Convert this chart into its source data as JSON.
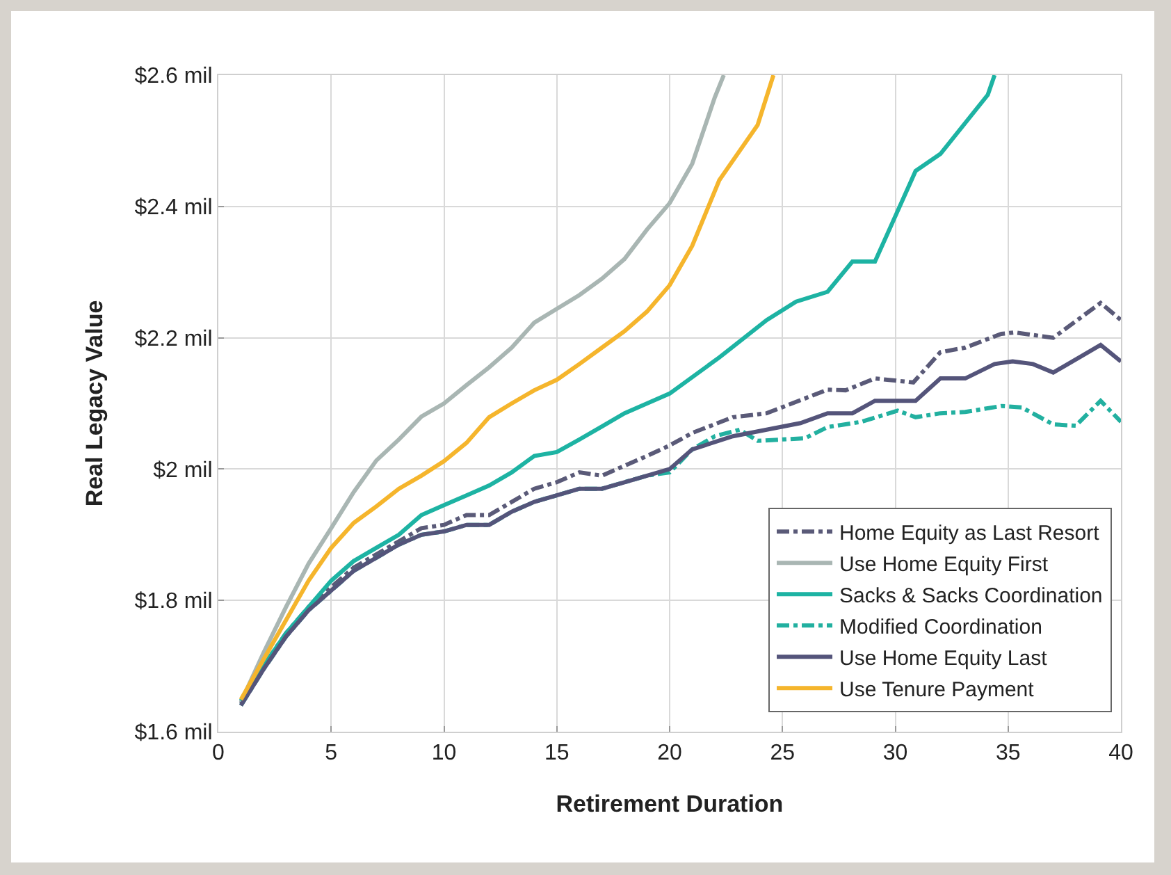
{
  "chart_data": {
    "type": "line",
    "xlabel": "Retirement Duration",
    "ylabel": "Real Legacy Value",
    "xlim": [
      0,
      40
    ],
    "xticks": [
      0,
      5,
      10,
      15,
      20,
      25,
      30,
      35,
      40
    ],
    "ylim": [
      1.6,
      2.6
    ],
    "yticks": [
      {
        "value": 1.6,
        "label": "$1.6 mil"
      },
      {
        "value": 1.8,
        "label": "$1.8 mil"
      },
      {
        "value": 2,
        "label": "$2 mil"
      },
      {
        "value": 2.2,
        "label": "$2.2 mil"
      },
      {
        "value": 2.4,
        "label": "$2.4 mil"
      },
      {
        "value": 2.6,
        "label": "$2.6 mil"
      }
    ],
    "grid": true,
    "legend": "bottom right",
    "marker": "none",
    "series": [
      {
        "name": "Home Equity as Last Resort",
        "color": "#5a5a78",
        "line_style": "dashdot",
        "x": [
          1,
          2,
          3,
          4,
          5,
          6,
          7,
          8,
          9,
          10,
          11,
          12,
          13,
          14,
          15,
          16,
          17,
          18,
          19,
          20,
          21,
          22.8,
          24.3,
          27,
          27.8,
          29.1,
          30.8,
          32,
          33.1,
          34.7,
          35.3,
          37,
          39.1,
          40
        ],
        "values": [
          1.643,
          1.7,
          1.75,
          1.79,
          1.82,
          1.85,
          1.87,
          1.89,
          1.91,
          1.915,
          1.93,
          1.93,
          1.95,
          1.97,
          1.98,
          1.995,
          1.99,
          2.005,
          2.02,
          2.036,
          2.055,
          2.079,
          2.085,
          2.121,
          2.12,
          2.138,
          2.132,
          2.178,
          2.185,
          2.206,
          2.208,
          2.2,
          2.253,
          2.227
        ]
      },
      {
        "name": "Use Home Equity First",
        "color": "#a9b6b3",
        "x": [
          1,
          2,
          3,
          4,
          5,
          6,
          7,
          8,
          9,
          10,
          11,
          12,
          13,
          14,
          15,
          16,
          17,
          18,
          19,
          20,
          21,
          22,
          22.4
        ],
        "values": [
          1.645,
          1.72,
          1.79,
          1.856,
          1.91,
          1.965,
          2.013,
          2.045,
          2.08,
          2.1,
          2.128,
          2.155,
          2.185,
          2.223,
          2.244,
          2.265,
          2.29,
          2.32,
          2.365,
          2.405,
          2.465,
          2.566,
          2.6
        ]
      },
      {
        "name": "Sacks & Sacks Coordination",
        "color": "#1db3a3",
        "x": [
          1,
          2,
          3,
          4,
          5,
          6,
          7,
          8,
          9,
          10,
          11,
          12,
          13,
          14,
          15,
          16,
          17,
          18,
          19,
          20,
          22.2,
          24.3,
          25.6,
          27,
          28.1,
          29.1,
          30.9,
          32,
          34.1,
          34.4
        ],
        "values": [
          1.647,
          1.7,
          1.75,
          1.79,
          1.83,
          1.86,
          1.88,
          1.9,
          1.93,
          1.945,
          1.96,
          1.975,
          1.995,
          2.02,
          2.026,
          2.045,
          2.065,
          2.085,
          2.1,
          2.115,
          2.17,
          2.227,
          2.255,
          2.27,
          2.316,
          2.316,
          2.454,
          2.48,
          2.57,
          2.6
        ]
      },
      {
        "name": "Modified Coordination",
        "color": "#22b0a0",
        "line_style": "dashdot",
        "x": [
          1,
          2,
          3,
          4,
          5,
          6,
          7,
          8,
          9,
          10,
          11,
          12,
          13,
          14,
          15,
          16,
          17,
          18,
          19,
          20,
          21,
          22,
          23.1,
          23.9,
          26,
          27,
          28.5,
          30.1,
          30.9,
          32,
          33.1,
          34.7,
          35.6,
          37,
          38,
          39.1,
          40
        ],
        "values": [
          1.64,
          1.695,
          1.745,
          1.785,
          1.815,
          1.845,
          1.865,
          1.885,
          1.9,
          1.905,
          1.915,
          1.915,
          1.935,
          1.95,
          1.96,
          1.97,
          1.97,
          1.98,
          1.99,
          1.995,
          2.03,
          2.05,
          2.06,
          2.043,
          2.047,
          2.064,
          2.072,
          2.089,
          2.079,
          2.085,
          2.087,
          2.096,
          2.094,
          2.068,
          2.066,
          2.104,
          2.072
        ]
      },
      {
        "name": "Use Home Equity Last",
        "color": "#54547a",
        "x": [
          1,
          2,
          3,
          4,
          5,
          6,
          7,
          8,
          9,
          10,
          11,
          12,
          13,
          14,
          15,
          16,
          17,
          18,
          19,
          20,
          21,
          22.8,
          24.3,
          25.8,
          27,
          28.1,
          29.1,
          30.9,
          32,
          33.1,
          34.4,
          35.2,
          36.1,
          37,
          39.1,
          40
        ],
        "values": [
          1.64,
          1.695,
          1.745,
          1.785,
          1.815,
          1.845,
          1.865,
          1.885,
          1.9,
          1.905,
          1.915,
          1.915,
          1.935,
          1.95,
          1.96,
          1.97,
          1.97,
          1.98,
          1.99,
          2.0,
          2.03,
          2.05,
          2.06,
          2.07,
          2.085,
          2.085,
          2.104,
          2.104,
          2.138,
          2.138,
          2.16,
          2.164,
          2.16,
          2.147,
          2.189,
          2.164
        ]
      },
      {
        "name": "Use Tenure Payment",
        "color": "#f5b52c",
        "x": [
          1,
          2,
          3,
          4,
          5,
          6,
          7,
          8,
          9,
          10,
          11,
          12,
          13,
          14,
          15,
          16,
          17,
          18,
          19,
          20,
          21,
          22.2,
          23.9,
          24.6
        ],
        "values": [
          1.649,
          1.71,
          1.77,
          1.83,
          1.88,
          1.918,
          1.943,
          1.97,
          1.99,
          2.012,
          2.04,
          2.079,
          2.1,
          2.12,
          2.136,
          2.16,
          2.185,
          2.21,
          2.24,
          2.28,
          2.34,
          2.44,
          2.524,
          2.6
        ]
      }
    ]
  }
}
